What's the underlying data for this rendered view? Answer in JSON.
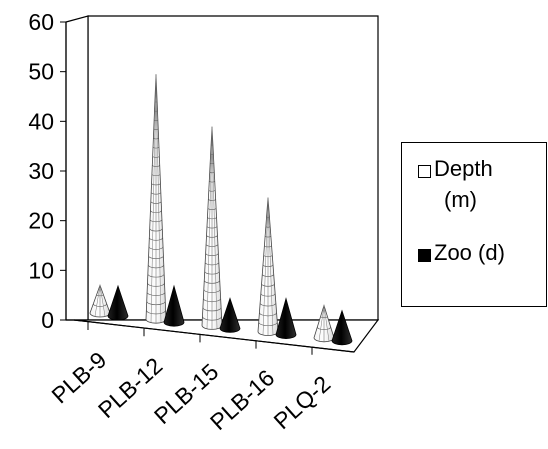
{
  "chart_data": {
    "type": "bar",
    "style": "3d-cone",
    "categories": [
      "PLB-9",
      "PLB-12",
      "PLB-15",
      "PLB-16",
      "PLQ-2"
    ],
    "series": [
      {
        "name": "Depth (m)",
        "values": [
          6,
          53,
          43,
          29,
          7
        ],
        "color": "#ffffff"
      },
      {
        "name": "Zoo (d)",
        "values": [
          2.5,
          3,
          2.5,
          3,
          2.5
        ],
        "color": "#000000"
      }
    ],
    "yticks": [
      "0",
      "10",
      "20",
      "30",
      "40",
      "50",
      "60"
    ],
    "ylim": [
      0,
      60
    ],
    "grid": false,
    "legend_position": "right"
  },
  "legend": {
    "depth_line1": "Depth",
    "depth_line2": "(m)",
    "zoo": "Zoo (d)"
  }
}
